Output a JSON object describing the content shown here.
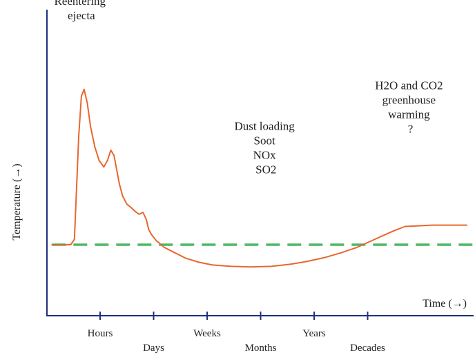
{
  "chart_data": {
    "type": "line",
    "title": "",
    "xlabel": "Time (→)",
    "ylabel": "Temperature (→)",
    "x_ticks": [
      "Hours",
      "Days",
      "Weeks",
      "Months",
      "Years",
      "Decades"
    ],
    "y_ticks": [],
    "grid": false,
    "legend": "none",
    "series": [
      {
        "name": "",
        "style": "solid",
        "color": "#e8662e",
        "x": [
          -0.9,
          -0.55,
          -0.48,
          -0.4,
          -0.35,
          -0.3,
          -0.24,
          -0.18,
          -0.1,
          -0.02,
          0.07,
          0.14,
          0.2,
          0.26,
          0.3,
          0.36,
          0.42,
          0.5,
          0.58,
          0.66,
          0.73,
          0.8,
          0.86,
          0.91,
          0.96,
          1.05,
          1.2,
          1.4,
          1.6,
          1.85,
          2.1,
          2.45,
          2.8,
          3.2,
          3.55,
          3.85,
          4.2,
          4.5,
          4.8,
          5.05,
          5.3,
          5.5,
          5.7,
          5.95,
          6.2,
          6.5,
          6.85
        ],
        "y": [
          0,
          0,
          0.08,
          1.6,
          2.2,
          2.3,
          2.1,
          1.75,
          1.45,
          1.25,
          1.15,
          1.25,
          1.4,
          1.32,
          1.15,
          0.9,
          0.72,
          0.6,
          0.55,
          0.49,
          0.45,
          0.48,
          0.38,
          0.22,
          0.15,
          0.06,
          -0.04,
          -0.12,
          -0.2,
          -0.26,
          -0.3,
          -0.32,
          -0.33,
          -0.32,
          -0.29,
          -0.25,
          -0.19,
          -0.12,
          -0.04,
          0.05,
          0.14,
          0.21,
          0.27,
          0.28,
          0.29,
          0.29,
          0.29
        ]
      },
      {
        "name": "",
        "style": "dashed",
        "color": "#4db866",
        "x": [
          -0.9,
          7.85
        ],
        "y": [
          0,
          0
        ]
      }
    ],
    "annotations": [
      {
        "id": "ejecta",
        "lines": [
          "Reentering",
          "ejecta"
        ],
        "x": -0.35,
        "y": 3.55
      },
      {
        "id": "dust",
        "lines": [
          "Dust loading",
          "Soot",
          "NOx",
          "SO2"
        ],
        "x": 3.1,
        "y": 1.7
      },
      {
        "id": "greenhouse",
        "lines": [
          "H2O and CO2",
          "greenhouse",
          "warming",
          "?"
        ],
        "x": 5.8,
        "y": 2.3
      }
    ]
  }
}
